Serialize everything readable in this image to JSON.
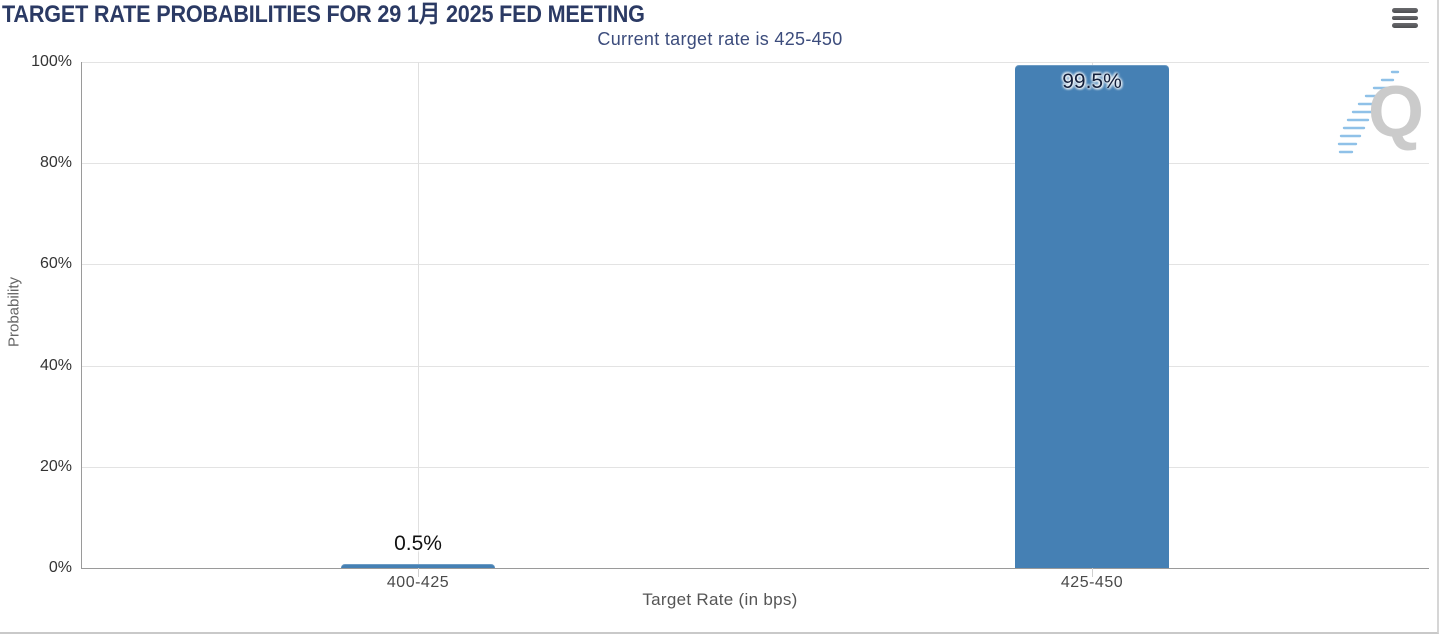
{
  "header": {
    "title": "TARGET RATE PROBABILITIES FOR 29 1月 2025 FED MEETING",
    "menu_icon": "hamburger-menu-icon"
  },
  "chart_data": {
    "type": "bar",
    "title": "Current target rate is 425-450",
    "categories": [
      "400-425",
      "425-450"
    ],
    "values": [
      0.5,
      99.5
    ],
    "value_labels": [
      "0.5%",
      "99.5%"
    ],
    "xlabel": "Target Rate (in bps)",
    "ylabel": "Probability",
    "ylim": [
      0,
      100
    ],
    "yticks": [
      "100%",
      "80%",
      "60%",
      "40%",
      "20%",
      "0%"
    ],
    "grid": true,
    "legend": "none",
    "bar_color": "#4580b4"
  },
  "watermark": {
    "letter": "Q",
    "name": "quikstrike-logo"
  }
}
